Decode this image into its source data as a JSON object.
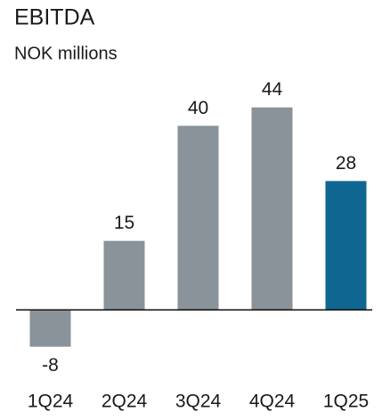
{
  "chart_data": {
    "type": "bar",
    "title": "EBITDA",
    "subtitle": "NOK millions",
    "categories": [
      "1Q24",
      "2Q24",
      "3Q24",
      "4Q24",
      "1Q25"
    ],
    "values": [
      -8,
      15,
      40,
      44,
      28
    ],
    "colors": [
      "#8a9399",
      "#8a9399",
      "#8a9399",
      "#8a9399",
      "#0f6690"
    ],
    "ylim": [
      -10,
      48
    ]
  }
}
